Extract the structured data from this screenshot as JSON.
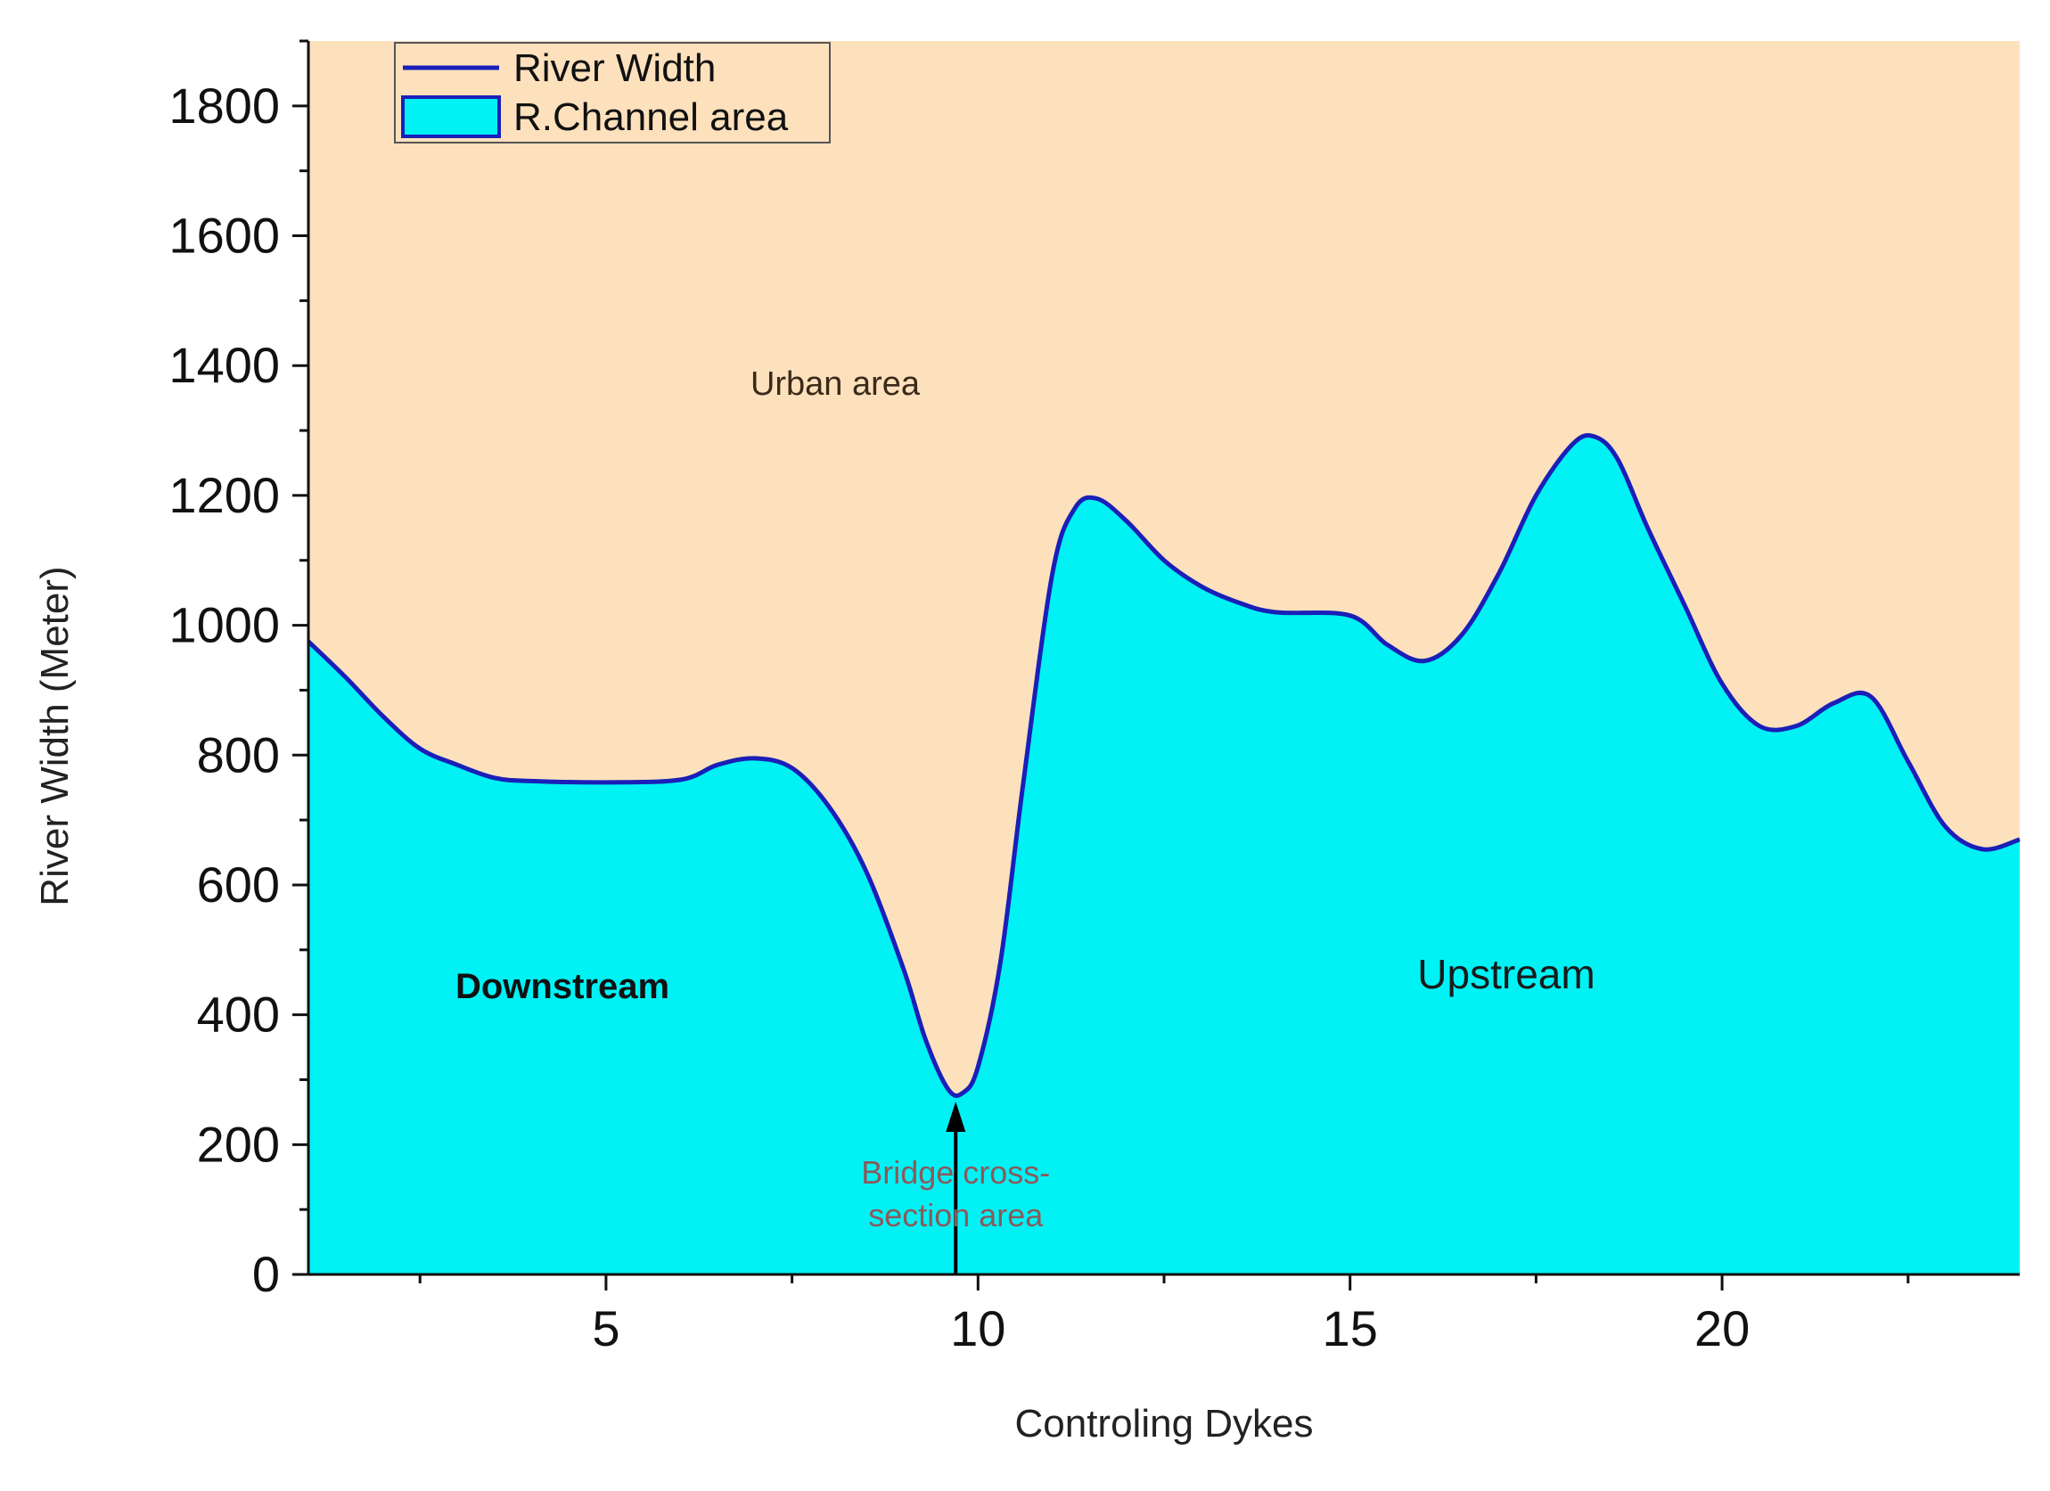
{
  "chart_data": {
    "type": "area",
    "xlabel": "Controling Dykes",
    "ylabel": "River Width (Meter)",
    "xlim": [
      1,
      24
    ],
    "ylim": [
      0,
      1900
    ],
    "x_ticks": [
      5,
      10,
      15,
      20
    ],
    "y_ticks": [
      0,
      200,
      400,
      600,
      800,
      1000,
      1200,
      1400,
      1600,
      1800
    ],
    "series": [
      {
        "name": "River Width",
        "x": [
          1,
          1.5,
          2,
          2.5,
          3,
          3.5,
          4,
          5,
          6,
          6.5,
          7,
          7.5,
          8,
          8.5,
          9,
          9.3,
          9.6,
          9.8,
          10,
          10.3,
          10.6,
          11,
          11.3,
          11.6,
          12,
          12.5,
          13,
          13.5,
          14,
          15,
          15.5,
          16,
          16.5,
          17,
          17.5,
          18,
          18.3,
          18.6,
          19,
          19.5,
          20,
          20.5,
          21,
          21.5,
          22,
          22.5,
          23,
          23.5,
          24
        ],
        "values": [
          975,
          920,
          860,
          810,
          785,
          765,
          760,
          758,
          762,
          785,
          795,
          780,
          720,
          620,
          470,
          360,
          285,
          280,
          320,
          480,
          750,
          1080,
          1180,
          1195,
          1160,
          1100,
          1060,
          1035,
          1020,
          1015,
          970,
          945,
          985,
          1080,
          1200,
          1280,
          1290,
          1255,
          1150,
          1030,
          910,
          845,
          845,
          880,
          890,
          790,
          690,
          655,
          670
        ]
      }
    ],
    "legend": {
      "position": "top-left",
      "entries": [
        {
          "label": "River Width",
          "kind": "line",
          "color": "#1a1fb8"
        },
        {
          "label": "R.Channel area",
          "kind": "fill",
          "color": "#00f2f5"
        }
      ]
    },
    "annotations": {
      "urban": "Urban area",
      "downstream": "Downstream",
      "upstream": "Upstream",
      "bridge_line1": "Bridge cross-",
      "bridge_line2": "section area",
      "bridge_x": 9.7
    },
    "colors": {
      "background_region": "#fde1bd",
      "channel_fill": "#00f2f5",
      "line": "#1a1fb8",
      "axis": "#111111"
    }
  }
}
